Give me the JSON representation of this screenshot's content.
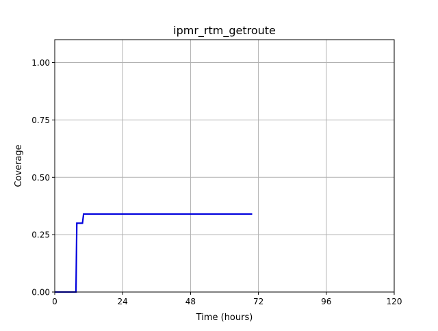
{
  "chart_data": {
    "type": "line",
    "title": "ipmr_rtm_getroute",
    "xlabel": "Time (hours)",
    "ylabel": "Coverage",
    "xlim": [
      0,
      120
    ],
    "ylim": [
      0,
      1.1
    ],
    "xticks": [
      0,
      24,
      48,
      72,
      96,
      120
    ],
    "xtick_labels": [
      "0",
      "24",
      "48",
      "72",
      "96",
      "120"
    ],
    "yticks": [
      0,
      0.25,
      0.5,
      0.75,
      1.0
    ],
    "ytick_labels": [
      "0.00",
      "0.25",
      "0.50",
      "0.75",
      "1.00"
    ],
    "grid": true,
    "series": [
      {
        "color": "#0000dd",
        "x": [
          0,
          7.5,
          7.8,
          9.8,
          10.2,
          69.8
        ],
        "y": [
          0,
          0,
          0.3,
          0.3,
          0.34,
          0.34
        ]
      }
    ]
  }
}
